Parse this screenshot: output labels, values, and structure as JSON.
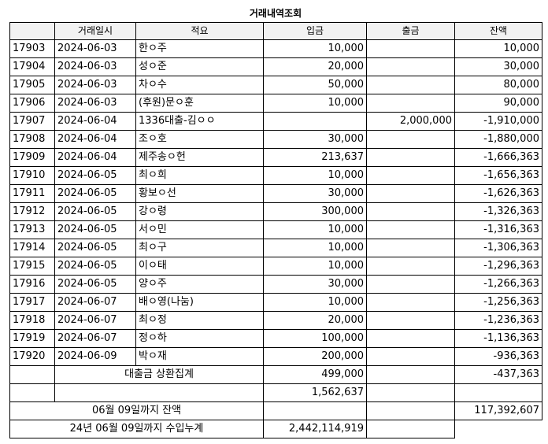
{
  "title": "거래내역조회",
  "headers": [
    "",
    "거래일시",
    "적요",
    "입금",
    "출금",
    "잔액"
  ],
  "rows": [
    {
      "id": "17903",
      "date": "2024-06-03",
      "desc": "한ㅇ주",
      "deposit": "10,000",
      "withdraw": "",
      "balance": "10,000"
    },
    {
      "id": "17904",
      "date": "2024-06-03",
      "desc": "성ㅇ준",
      "deposit": "20,000",
      "withdraw": "",
      "balance": "30,000"
    },
    {
      "id": "17905",
      "date": "2024-06-03",
      "desc": "차ㅇ수",
      "deposit": "50,000",
      "withdraw": "",
      "balance": "80,000"
    },
    {
      "id": "17906",
      "date": "2024-06-03",
      "desc": "(후원)문ㅇ훈",
      "deposit": "10,000",
      "withdraw": "",
      "balance": "90,000"
    },
    {
      "id": "17907",
      "date": "2024-06-04",
      "desc": "1336대출-김ㅇㅇ",
      "deposit": "",
      "withdraw": "2,000,000",
      "balance": "-1,910,000"
    },
    {
      "id": "17908",
      "date": "2024-06-04",
      "desc": "조ㅇ호",
      "deposit": "30,000",
      "withdraw": "",
      "balance": "-1,880,000"
    },
    {
      "id": "17909",
      "date": "2024-06-04",
      "desc": "제주송ㅇ헌",
      "deposit": "213,637",
      "withdraw": "",
      "balance": "-1,666,363"
    },
    {
      "id": "17910",
      "date": "2024-06-05",
      "desc": "최ㅇ희",
      "deposit": "10,000",
      "withdraw": "",
      "balance": "-1,656,363"
    },
    {
      "id": "17911",
      "date": "2024-06-05",
      "desc": "황보ㅇ선",
      "deposit": "30,000",
      "withdraw": "",
      "balance": "-1,626,363"
    },
    {
      "id": "17912",
      "date": "2024-06-05",
      "desc": "강ㅇ령",
      "deposit": "300,000",
      "withdraw": "",
      "balance": "-1,326,363"
    },
    {
      "id": "17913",
      "date": "2024-06-05",
      "desc": "서ㅇ민",
      "deposit": "10,000",
      "withdraw": "",
      "balance": "-1,316,363"
    },
    {
      "id": "17914",
      "date": "2024-06-05",
      "desc": "최ㅇ구",
      "deposit": "10,000",
      "withdraw": "",
      "balance": "-1,306,363"
    },
    {
      "id": "17915",
      "date": "2024-06-05",
      "desc": "이ㅇ태",
      "deposit": "10,000",
      "withdraw": "",
      "balance": "-1,296,363"
    },
    {
      "id": "17916",
      "date": "2024-06-05",
      "desc": "양ㅇ주",
      "deposit": "30,000",
      "withdraw": "",
      "balance": "-1,266,363"
    },
    {
      "id": "17917",
      "date": "2024-06-07",
      "desc": "배ㅇ영(나눔)",
      "deposit": "10,000",
      "withdraw": "",
      "balance": "-1,256,363"
    },
    {
      "id": "17918",
      "date": "2024-06-07",
      "desc": "최ㅇ정",
      "deposit": "20,000",
      "withdraw": "",
      "balance": "-1,236,363"
    },
    {
      "id": "17919",
      "date": "2024-06-07",
      "desc": "정ㅇ하",
      "deposit": "100,000",
      "withdraw": "",
      "balance": "-1,136,363"
    },
    {
      "id": "17920",
      "date": "2024-06-09",
      "desc": "박ㅇ재",
      "deposit": "200,000",
      "withdraw": "",
      "balance": "-936,363"
    }
  ],
  "summary": {
    "loan_label": "대출금 상환집계",
    "loan_deposit": "499,000",
    "loan_balance": "-437,363",
    "subtotal": "1,562,637",
    "balance_label": "06월 09일까지 잔액",
    "balance_value": "117,392,607",
    "income_label": "24년 06월 09일까지 수입누계",
    "income_value": "2,442,114,919"
  }
}
